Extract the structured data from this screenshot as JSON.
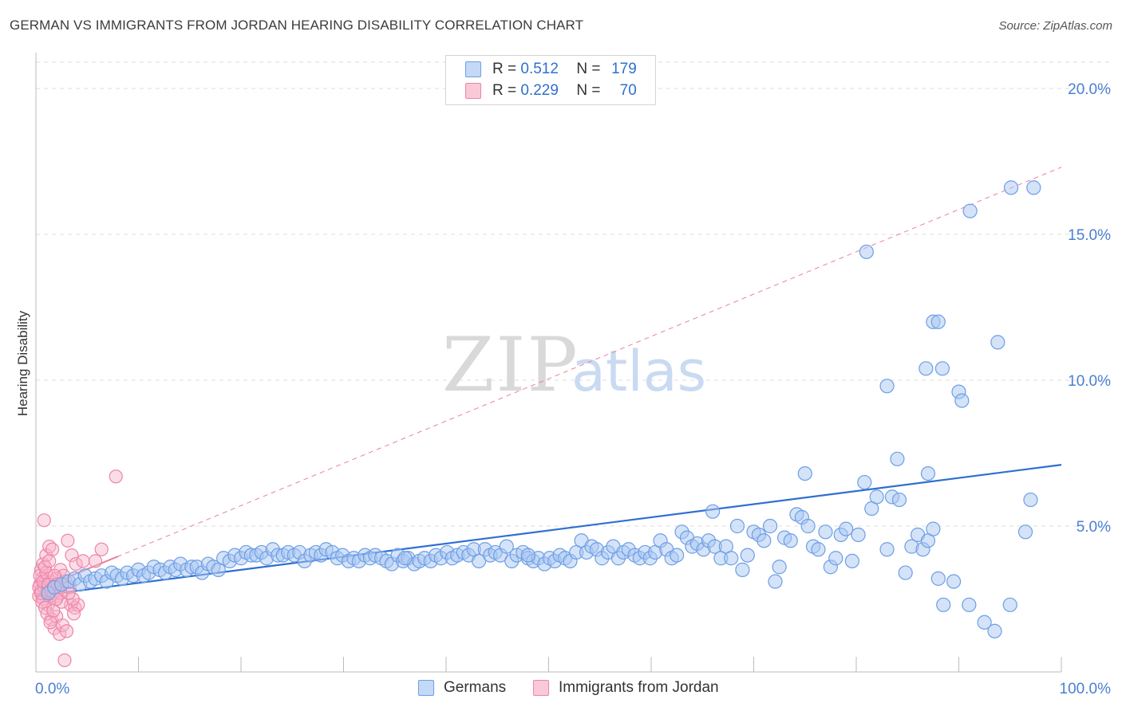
{
  "header": {
    "title": "GERMAN VS IMMIGRANTS FROM JORDAN HEARING DISABILITY CORRELATION CHART",
    "source": "Source: ZipAtlas.com"
  },
  "watermark": {
    "zip": "ZIP",
    "atlas": "atlas"
  },
  "legend_top": {
    "rows": [
      {
        "r_label": "R =",
        "r_value": "0.512",
        "n_label": "N =",
        "n_value": "179"
      },
      {
        "r_label": "R =",
        "r_value": "0.229",
        "n_label": "N =",
        "n_value": "70"
      }
    ]
  },
  "legend_bottom": {
    "items": [
      "Germans",
      "Immigrants from Jordan"
    ]
  },
  "colors": {
    "blue_fill": "#a9c7f2",
    "blue_stroke": "#6d9ee6",
    "blue_line": "#2f6fd0",
    "pink_fill": "#f6b3c9",
    "pink_stroke": "#ee84a8",
    "pink_line": "#e8819f",
    "tick_text": "#4a7fd4",
    "grid": "#dcdcdc"
  },
  "chart_data": {
    "type": "scatter",
    "title": "GERMAN VS IMMIGRANTS FROM JORDAN HEARING DISABILITY CORRELATION CHART",
    "xlabel": "",
    "ylabel": "Hearing Disability",
    "xlim": [
      0,
      100
    ],
    "ylim": [
      0,
      20
    ],
    "x_tick_labels": [
      "0.0%",
      "100.0%"
    ],
    "y_ticks": [
      5,
      10,
      15,
      20
    ],
    "y_tick_labels": [
      "5.0%",
      "10.0%",
      "15.0%",
      "20.0%"
    ],
    "grid": true,
    "legend_placement": "top-center",
    "series": [
      {
        "name": "Germans",
        "r": 0.512,
        "n": 179,
        "trend": {
          "x": [
            0,
            100
          ],
          "y": [
            2.6,
            7.1
          ],
          "style": "solid"
        },
        "points": [
          [
            1.2,
            2.7
          ],
          [
            1.8,
            2.9
          ],
          [
            2.5,
            3.0
          ],
          [
            3.2,
            3.1
          ],
          [
            3.8,
            3.2
          ],
          [
            4.3,
            3.0
          ],
          [
            4.8,
            3.3
          ],
          [
            5.3,
            3.1
          ],
          [
            5.8,
            3.2
          ],
          [
            6.4,
            3.3
          ],
          [
            6.9,
            3.1
          ],
          [
            7.4,
            3.4
          ],
          [
            7.9,
            3.3
          ],
          [
            8.4,
            3.2
          ],
          [
            8.9,
            3.4
          ],
          [
            9.5,
            3.3
          ],
          [
            10.0,
            3.5
          ],
          [
            10.5,
            3.3
          ],
          [
            11.0,
            3.4
          ],
          [
            11.5,
            3.6
          ],
          [
            12.1,
            3.5
          ],
          [
            12.6,
            3.4
          ],
          [
            13.1,
            3.6
          ],
          [
            13.6,
            3.5
          ],
          [
            14.1,
            3.7
          ],
          [
            14.7,
            3.5
          ],
          [
            15.2,
            3.6
          ],
          [
            15.7,
            3.6
          ],
          [
            16.2,
            3.4
          ],
          [
            16.8,
            3.7
          ],
          [
            17.3,
            3.6
          ],
          [
            17.8,
            3.5
          ],
          [
            18.3,
            3.9
          ],
          [
            18.9,
            3.8
          ],
          [
            19.4,
            4.0
          ],
          [
            20.0,
            3.9
          ],
          [
            20.5,
            4.1
          ],
          [
            21.0,
            4.0
          ],
          [
            21.5,
            4.0
          ],
          [
            22.0,
            4.1
          ],
          [
            22.5,
            3.9
          ],
          [
            23.1,
            4.2
          ],
          [
            23.6,
            4.0
          ],
          [
            24.1,
            4.0
          ],
          [
            24.6,
            4.1
          ],
          [
            25.2,
            4.0
          ],
          [
            25.7,
            4.1
          ],
          [
            26.2,
            3.8
          ],
          [
            26.8,
            4.0
          ],
          [
            27.3,
            4.1
          ],
          [
            27.8,
            4.0
          ],
          [
            28.3,
            4.2
          ],
          [
            28.9,
            4.1
          ],
          [
            29.4,
            3.9
          ],
          [
            29.9,
            4.0
          ],
          [
            30.5,
            3.8
          ],
          [
            31.0,
            3.9
          ],
          [
            31.5,
            3.8
          ],
          [
            32.1,
            4.0
          ],
          [
            32.6,
            3.9
          ],
          [
            33.1,
            4.0
          ],
          [
            33.7,
            3.9
          ],
          [
            34.2,
            3.8
          ],
          [
            34.7,
            3.7
          ],
          [
            35.3,
            4.0
          ],
          [
            35.8,
            3.8
          ],
          [
            36.3,
            3.9
          ],
          [
            36.9,
            3.7
          ],
          [
            37.4,
            3.8
          ],
          [
            37.9,
            3.9
          ],
          [
            38.5,
            3.8
          ],
          [
            39.0,
            4.0
          ],
          [
            39.5,
            3.9
          ],
          [
            40.1,
            4.1
          ],
          [
            40.6,
            3.9
          ],
          [
            41.1,
            4.0
          ],
          [
            41.7,
            4.1
          ],
          [
            42.2,
            4.0
          ],
          [
            42.7,
            4.2
          ],
          [
            43.2,
            3.8
          ],
          [
            43.8,
            4.2
          ],
          [
            44.3,
            4.0
          ],
          [
            44.8,
            4.1
          ],
          [
            45.3,
            4.0
          ],
          [
            45.9,
            4.3
          ],
          [
            46.4,
            3.8
          ],
          [
            46.9,
            4.0
          ],
          [
            47.5,
            4.1
          ],
          [
            48.0,
            3.9
          ],
          [
            48.5,
            3.8
          ],
          [
            49.0,
            3.9
          ],
          [
            49.6,
            3.7
          ],
          [
            50.1,
            3.9
          ],
          [
            50.6,
            3.8
          ],
          [
            51.1,
            4.0
          ],
          [
            51.6,
            3.9
          ],
          [
            52.1,
            3.8
          ],
          [
            52.7,
            4.1
          ],
          [
            53.2,
            4.5
          ],
          [
            53.7,
            4.1
          ],
          [
            54.2,
            4.3
          ],
          [
            54.7,
            4.2
          ],
          [
            55.2,
            3.9
          ],
          [
            55.8,
            4.1
          ],
          [
            56.3,
            4.3
          ],
          [
            56.8,
            3.9
          ],
          [
            57.3,
            4.1
          ],
          [
            57.8,
            4.2
          ],
          [
            58.4,
            4.0
          ],
          [
            58.9,
            3.9
          ],
          [
            59.4,
            4.1
          ],
          [
            59.9,
            3.9
          ],
          [
            60.4,
            4.1
          ],
          [
            60.9,
            4.5
          ],
          [
            61.5,
            4.2
          ],
          [
            62.0,
            3.9
          ],
          [
            62.5,
            4.0
          ],
          [
            63.0,
            4.8
          ],
          [
            63.5,
            4.6
          ],
          [
            64.0,
            4.3
          ],
          [
            64.5,
            4.4
          ],
          [
            65.1,
            4.2
          ],
          [
            65.6,
            4.5
          ],
          [
            66.2,
            4.3
          ],
          [
            66.8,
            3.9
          ],
          [
            67.3,
            4.3
          ],
          [
            67.8,
            3.9
          ],
          [
            68.4,
            5.0
          ],
          [
            68.9,
            3.5
          ],
          [
            69.4,
            4.0
          ],
          [
            70.0,
            4.8
          ],
          [
            70.5,
            4.7
          ],
          [
            71.0,
            4.5
          ],
          [
            71.6,
            5.0
          ],
          [
            72.1,
            3.1
          ],
          [
            72.5,
            3.6
          ],
          [
            73.0,
            4.6
          ],
          [
            73.6,
            4.5
          ],
          [
            74.2,
            5.4
          ],
          [
            74.7,
            5.3
          ],
          [
            75.3,
            5.0
          ],
          [
            75.8,
            4.3
          ],
          [
            76.3,
            4.2
          ],
          [
            77.0,
            4.8
          ],
          [
            77.5,
            3.6
          ],
          [
            78.0,
            3.9
          ],
          [
            78.5,
            4.7
          ],
          [
            79.0,
            4.9
          ],
          [
            79.6,
            3.8
          ],
          [
            80.2,
            4.7
          ],
          [
            80.8,
            6.5
          ],
          [
            81.5,
            5.6
          ],
          [
            82.0,
            6.0
          ],
          [
            83.0,
            4.2
          ],
          [
            83.5,
            6.0
          ],
          [
            84.2,
            5.9
          ],
          [
            84.8,
            3.4
          ],
          [
            85.4,
            4.3
          ],
          [
            86.0,
            4.7
          ],
          [
            86.5,
            4.2
          ],
          [
            87.0,
            4.5
          ],
          [
            87.5,
            4.9
          ],
          [
            88.0,
            3.2
          ],
          [
            88.5,
            2.3
          ],
          [
            89.5,
            3.1
          ],
          [
            91.0,
            2.3
          ],
          [
            92.5,
            1.7
          ],
          [
            93.5,
            1.4
          ],
          [
            95.0,
            2.3
          ],
          [
            97.0,
            5.9
          ],
          [
            96.5,
            4.8
          ],
          [
            87.0,
            6.8
          ],
          [
            75.0,
            6.8
          ],
          [
            84.0,
            7.3
          ],
          [
            83.0,
            9.8
          ],
          [
            90.0,
            9.6
          ],
          [
            90.3,
            9.3
          ],
          [
            88.4,
            10.4
          ],
          [
            86.8,
            10.4
          ],
          [
            91.1,
            15.8
          ],
          [
            95.1,
            16.6
          ],
          [
            81.0,
            14.4
          ],
          [
            87.5,
            12.0
          ],
          [
            88.0,
            12.0
          ],
          [
            93.8,
            11.3
          ],
          [
            97.3,
            16.6
          ],
          [
            66.0,
            5.5
          ],
          [
            48.0,
            4.0
          ],
          [
            36.0,
            3.9
          ]
        ]
      },
      {
        "name": "Immigrants from Jordan",
        "r": 0.229,
        "n": 70,
        "trend": {
          "x": [
            0,
            100
          ],
          "y": [
            2.8,
            17.3
          ],
          "style": "dashed",
          "solid_until_x": 8
        },
        "points": [
          [
            0.3,
            2.6
          ],
          [
            0.4,
            3.0
          ],
          [
            0.5,
            2.8
          ],
          [
            0.6,
            3.2
          ],
          [
            0.7,
            2.5
          ],
          [
            0.8,
            2.9
          ],
          [
            0.9,
            3.1
          ],
          [
            1.0,
            2.7
          ],
          [
            1.1,
            3.3
          ],
          [
            1.2,
            2.8
          ],
          [
            1.3,
            3.0
          ],
          [
            1.4,
            2.6
          ],
          [
            1.5,
            3.1
          ],
          [
            1.6,
            2.9
          ],
          [
            1.7,
            2.7
          ],
          [
            1.8,
            3.0
          ],
          [
            1.9,
            2.8
          ],
          [
            2.0,
            3.2
          ],
          [
            2.1,
            2.6
          ],
          [
            2.2,
            2.9
          ],
          [
            0.5,
            3.5
          ],
          [
            0.7,
            3.7
          ],
          [
            1.0,
            4.0
          ],
          [
            1.3,
            4.3
          ],
          [
            1.6,
            4.2
          ],
          [
            0.8,
            5.2
          ],
          [
            1.2,
            2.3
          ],
          [
            1.5,
            1.8
          ],
          [
            1.8,
            1.5
          ],
          [
            2.0,
            1.9
          ],
          [
            2.3,
            1.3
          ],
          [
            2.6,
            1.6
          ],
          [
            3.0,
            1.4
          ],
          [
            2.8,
            0.4
          ],
          [
            3.4,
            2.3
          ],
          [
            3.8,
            2.2
          ],
          [
            4.1,
            2.3
          ],
          [
            3.6,
            2.5
          ],
          [
            3.3,
            2.9
          ],
          [
            2.9,
            3.1
          ],
          [
            3.1,
            4.5
          ],
          [
            3.5,
            4.0
          ],
          [
            3.9,
            3.7
          ],
          [
            4.6,
            3.8
          ],
          [
            5.8,
            3.8
          ],
          [
            6.4,
            4.2
          ],
          [
            7.8,
            6.7
          ],
          [
            2.4,
            3.5
          ],
          [
            2.7,
            3.3
          ],
          [
            0.4,
            3.3
          ],
          [
            0.6,
            2.4
          ],
          [
            0.9,
            2.2
          ],
          [
            1.1,
            2.0
          ],
          [
            1.4,
            1.7
          ],
          [
            1.7,
            2.1
          ],
          [
            2.5,
            2.4
          ],
          [
            3.2,
            2.7
          ],
          [
            0.3,
            2.9
          ],
          [
            0.5,
            2.7
          ],
          [
            0.7,
            3.1
          ],
          [
            1.0,
            3.4
          ],
          [
            1.2,
            3.0
          ],
          [
            1.5,
            2.8
          ],
          [
            1.8,
            3.3
          ],
          [
            2.1,
            3.0
          ],
          [
            2.4,
            2.7
          ],
          [
            0.9,
            3.6
          ],
          [
            1.3,
            3.8
          ],
          [
            2.0,
            2.5
          ],
          [
            3.7,
            2.0
          ]
        ]
      }
    ]
  }
}
